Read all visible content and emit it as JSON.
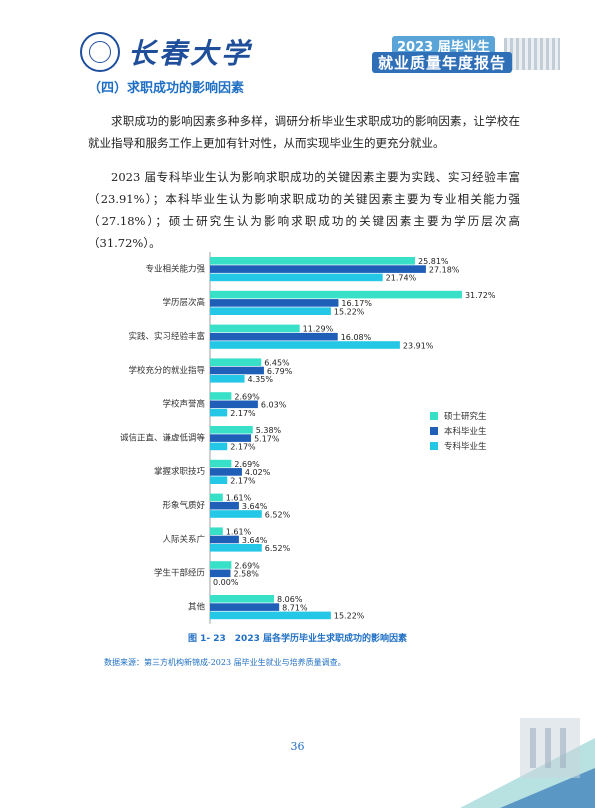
{
  "header": {
    "university_name": "长春大学",
    "banner_year": "2023 届毕业生",
    "banner_title": "就业质量年度报告"
  },
  "section_heading": "（四）求职成功的影响因素",
  "paragraphs": [
    "求职成功的影响因素多种多样，调研分析毕业生求职成功的影响因素，让学校在就业指导和服务工作上更加有针对性，从而实现毕业生的更充分就业。",
    "2023 届专科毕业生认为影响求职成功的关键因素主要为实践、实习经验丰富（23.91%）；本科毕业生认为影响求职成功的关键因素主要为专业相关能力强（27.18%）；硕士研究生认为影响求职成功的关键因素主要为学历层次高（31.72%）。"
  ],
  "colors": {
    "master": "#39e0c8",
    "bachelor": "#1f5fb8",
    "college": "#25c7e6",
    "accent": "#1f6fc4"
  },
  "chart_data": {
    "type": "bar",
    "orientation": "horizontal",
    "categories": [
      "专业相关能力强",
      "学历层次高",
      "实践、实习经验丰富",
      "学校充分的就业指导",
      "学校声誉高",
      "诚信正直、谦虚低调等",
      "掌握求职技巧",
      "形象气质好",
      "人际关系广",
      "学生干部经历",
      "其他"
    ],
    "series": [
      {
        "name": "硕士研究生",
        "values": [
          25.81,
          31.72,
          11.29,
          6.45,
          2.69,
          5.38,
          2.69,
          1.61,
          1.61,
          2.69,
          8.06
        ]
      },
      {
        "name": "本科毕业生",
        "values": [
          27.18,
          16.17,
          16.08,
          6.79,
          6.03,
          5.17,
          4.02,
          3.64,
          3.64,
          2.58,
          8.71
        ]
      },
      {
        "name": "专科毕业生",
        "values": [
          21.74,
          15.22,
          23.91,
          4.35,
          2.17,
          2.17,
          2.17,
          6.52,
          6.52,
          0.0,
          15.22
        ]
      }
    ],
    "value_labels": [
      [
        "25.81%",
        "27.18%",
        "21.74%"
      ],
      [
        "31.72%",
        "16.17%",
        "15.22%"
      ],
      [
        "11.29%",
        "16.08%",
        "23.91%"
      ],
      [
        "6.45%",
        "6.79%",
        "4.35%"
      ],
      [
        "2.69%",
        "6.03%",
        "2.17%"
      ],
      [
        "5.38%",
        "5.17%",
        "2.17%"
      ],
      [
        "2.69%",
        "4.02%",
        "2.17%"
      ],
      [
        "1.61%",
        "3.64%",
        "6.52%"
      ],
      [
        "1.61%",
        "3.64%",
        "6.52%"
      ],
      [
        "2.69%",
        "2.58%",
        "0.00%"
      ],
      [
        "8.06%",
        "8.71%",
        "15.22%"
      ]
    ],
    "xlim": [
      0,
      35
    ],
    "legend_position": "right",
    "grid": false
  },
  "caption": "图 1- 23　2023 届各学历毕业生求职成功的影响因素",
  "source": "数据来源：第三方机构新锦成-2023 届毕业生就业与培养质量调查。",
  "page_number": "36"
}
